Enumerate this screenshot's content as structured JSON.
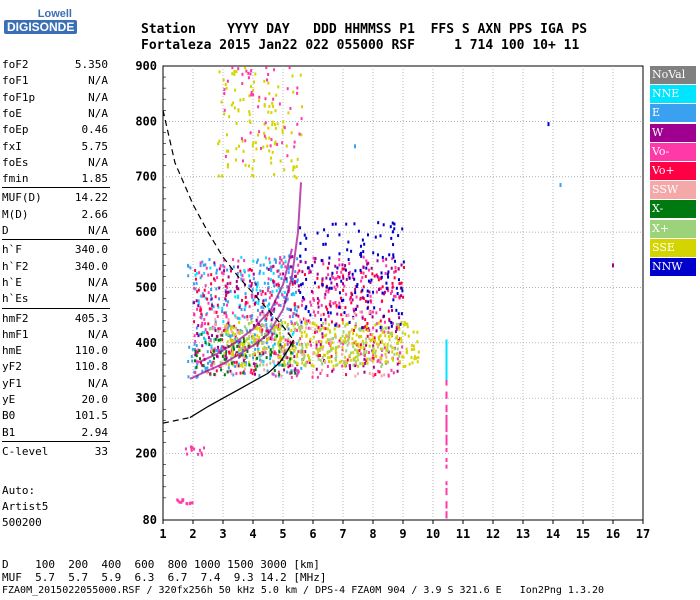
{
  "logo": {
    "line1": "Lowell",
    "line2": "DIGISONDE"
  },
  "header": {
    "row1": "Station    YYYY DAY   DDD HHMMSS P1  FFS S AXN PPS IGA PS",
    "row2": "Fortaleza 2015 Jan22 022 055000 RSF     1 714 100 10+ 11"
  },
  "params": [
    {
      "key": "foF2",
      "value": "5.350"
    },
    {
      "key": "foF1",
      "value": "N/A"
    },
    {
      "key": "foF1p",
      "value": "N/A"
    },
    {
      "key": "foE",
      "value": "N/A"
    },
    {
      "key": "foEp",
      "value": "0.46"
    },
    {
      "key": "fxI",
      "value": "5.75"
    },
    {
      "key": "foEs",
      "value": "N/A"
    },
    {
      "key": "fmin",
      "value": "1.85"
    },
    {
      "key": "MUF(D)",
      "value": "14.22"
    },
    {
      "key": "M(D)",
      "value": "2.66"
    },
    {
      "key": "D",
      "value": "N/A"
    },
    {
      "key": "h`F",
      "value": "340.0"
    },
    {
      "key": "h`F2",
      "value": "340.0"
    },
    {
      "key": "h`E",
      "value": "N/A"
    },
    {
      "key": "h`Es",
      "value": "N/A"
    },
    {
      "key": "hmF2",
      "value": "405.3"
    },
    {
      "key": "hmF1",
      "value": "N/A"
    },
    {
      "key": "hmE",
      "value": "110.0"
    },
    {
      "key": "yF2",
      "value": "110.8"
    },
    {
      "key": "yF1",
      "value": "N/A"
    },
    {
      "key": "yE",
      "value": "20.0"
    },
    {
      "key": "B0",
      "value": "101.5"
    },
    {
      "key": "B1",
      "value": "2.94"
    },
    {
      "key": "C-level",
      "value": "33"
    }
  ],
  "auto": {
    "line1": "Auto:",
    "line2": "Artist5",
    "line3": "500200"
  },
  "legend": [
    {
      "label": "NoVal",
      "color": "#808080"
    },
    {
      "label": "NNE",
      "color": "#00e5ff"
    },
    {
      "label": "E",
      "color": "#3aa0f0"
    },
    {
      "label": "W",
      "color": "#a0008f"
    },
    {
      "label": "Vo-",
      "color": "#ff3aa8"
    },
    {
      "label": "Vo+",
      "color": "#ff0044"
    },
    {
      "label": "SSW",
      "color": "#f4a8a8"
    },
    {
      "label": "X-",
      "color": "#007a10"
    },
    {
      "label": "X+",
      "color": "#9cd37a"
    },
    {
      "label": "SSE",
      "color": "#d4d400"
    },
    {
      "label": "NNW",
      "color": "#0000cc"
    }
  ],
  "bottom": {
    "d_row": "D    100  200  400  600  800 1000 1500 3000 [km]",
    "muf_row": "MUF  5.7  5.7  5.9  6.3  6.7  7.4  9.3 14.2 [MHz]",
    "footer": "FZA0M_2015022055000.RSF / 320fx256h 50 kHz 5.0 km / DPS-4 FZA0M 904 / 3.9 S 321.6 E   Ion2Png 1.3.20"
  },
  "chart_data": {
    "type": "scatter",
    "xlim": [
      1,
      17
    ],
    "ylim": [
      80,
      900
    ],
    "x_ticks": [
      "1",
      "2",
      "3",
      "4",
      "5",
      "6",
      "7",
      "8",
      "9",
      "10",
      "11",
      "12",
      "13",
      "14",
      "15",
      "16",
      "17"
    ],
    "y_ticks": [
      "80",
      "200",
      "300",
      "400",
      "500",
      "600",
      "700",
      "800",
      "900"
    ],
    "grid": true,
    "profile": [
      [
        1.9,
        265
      ],
      [
        2.5,
        285
      ],
      [
        3.0,
        300
      ],
      [
        3.5,
        315
      ],
      [
        4.0,
        330
      ],
      [
        4.5,
        345
      ],
      [
        4.9,
        365
      ],
      [
        5.2,
        390
      ],
      [
        5.35,
        405.3
      ]
    ],
    "mufline": [
      [
        1.0,
        820
      ],
      [
        1.4,
        725
      ],
      [
        2.0,
        650
      ],
      [
        2.5,
        600
      ],
      [
        3.0,
        555
      ],
      [
        3.5,
        520
      ],
      [
        4.0,
        490
      ],
      [
        4.5,
        460
      ],
      [
        5.0,
        430
      ],
      [
        5.35,
        405
      ]
    ],
    "traces": [
      {
        "name": "lower-trace",
        "points": [
          [
            1.9,
            335
          ],
          [
            2.5,
            350
          ],
          [
            3.0,
            362
          ],
          [
            3.5,
            378
          ],
          [
            4.0,
            395
          ],
          [
            4.5,
            415
          ],
          [
            5.0,
            460
          ],
          [
            5.3,
            520
          ],
          [
            5.5,
            600
          ],
          [
            5.6,
            690
          ]
        ]
      },
      {
        "name": "upper-trace",
        "points": [
          [
            2.2,
            365
          ],
          [
            2.8,
            380
          ],
          [
            3.4,
            400
          ],
          [
            4.0,
            425
          ],
          [
            4.6,
            460
          ],
          [
            5.0,
            505
          ],
          [
            5.3,
            570
          ]
        ]
      }
    ],
    "clusters": [
      {
        "color": "#3aa0f0",
        "x": [
          1.8,
          5.6
        ],
        "y": [
          340,
          560
        ],
        "n": 260
      },
      {
        "color": "#00e5ff",
        "x": [
          2.0,
          5.4
        ],
        "y": [
          360,
          560
        ],
        "n": 90
      },
      {
        "color": "#ff3aa8",
        "x": [
          2.0,
          9.0
        ],
        "y": [
          340,
          560
        ],
        "n": 300
      },
      {
        "color": "#ff0044",
        "x": [
          2.0,
          9.0
        ],
        "y": [
          345,
          540
        ],
        "n": 220
      },
      {
        "color": "#a0008f",
        "x": [
          2.0,
          9.0
        ],
        "y": [
          345,
          560
        ],
        "n": 200
      },
      {
        "color": "#d4d400",
        "x": [
          3.0,
          9.5
        ],
        "y": [
          360,
          440
        ],
        "n": 340
      },
      {
        "color": "#9cd37a",
        "x": [
          2.5,
          9.0
        ],
        "y": [
          360,
          440
        ],
        "n": 150
      },
      {
        "color": "#007a10",
        "x": [
          2.0,
          5.5
        ],
        "y": [
          345,
          420
        ],
        "n": 60
      },
      {
        "color": "#0000cc",
        "x": [
          5.5,
          9.0
        ],
        "y": [
          430,
          620
        ],
        "n": 130
      },
      {
        "color": "#f4a8a8",
        "x": [
          2.0,
          8.5
        ],
        "y": [
          340,
          460
        ],
        "n": 80
      },
      {
        "color": "#d4d400",
        "x": [
          2.8,
          5.6
        ],
        "y": [
          700,
          900
        ],
        "n": 110
      },
      {
        "color": "#ff3aa8",
        "x": [
          3.0,
          5.6
        ],
        "y": [
          720,
          900
        ],
        "n": 50
      },
      {
        "color": "#ff3aa8",
        "x": [
          1.7,
          2.5
        ],
        "y": [
          200,
          215
        ],
        "n": 12
      },
      {
        "color": "#ff3aa8",
        "x": [
          1.4,
          2.0
        ],
        "y": [
          112,
          120
        ],
        "n": 12
      }
    ],
    "columns": [
      {
        "x": 10.45,
        "y": [
          90,
          400
        ],
        "color": "#ff3aa8"
      },
      {
        "x": 10.45,
        "y": [
          340,
          410
        ],
        "color": "#00e5ff"
      }
    ],
    "isolated": [
      {
        "x": 13.85,
        "y": 795,
        "color": "#0000cc"
      },
      {
        "x": 14.25,
        "y": 685,
        "color": "#3aa0f0"
      },
      {
        "x": 16.0,
        "y": 540,
        "color": "#a0008f"
      },
      {
        "x": 7.4,
        "y": 755,
        "color": "#3aa0f0"
      }
    ]
  }
}
